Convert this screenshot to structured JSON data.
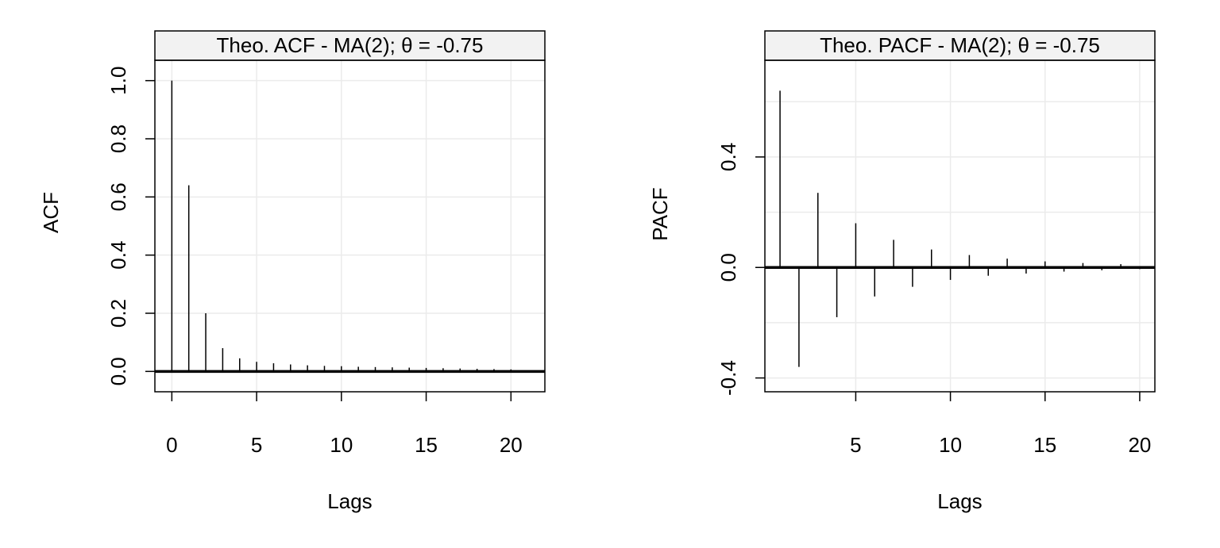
{
  "chart_data": [
    {
      "type": "bar",
      "title": "Theo. ACF - MA(2); θ = -0.75",
      "xlabel": "Lags",
      "ylabel": "ACF",
      "xlim": [
        -1,
        22
      ],
      "ylim": [
        -0.07,
        1.07
      ],
      "xticks": [
        0,
        5,
        10,
        15,
        20
      ],
      "xtick_labels": [
        "0",
        "5",
        "10",
        "15",
        "20"
      ],
      "yticks": [
        0.0,
        0.2,
        0.4,
        0.6,
        0.8,
        1.0
      ],
      "ytick_labels": [
        "0.0",
        "0.2",
        "0.4",
        "0.6",
        "0.8",
        "1.0"
      ],
      "grid": true,
      "x": [
        0,
        1,
        2,
        3,
        4,
        5,
        6,
        7,
        8,
        9,
        10,
        11,
        12,
        13,
        14,
        15,
        16,
        17,
        18,
        19,
        20
      ],
      "values": [
        1.0,
        0.64,
        0.2,
        0.08,
        0.045,
        0.033,
        0.028,
        0.024,
        0.021,
        0.019,
        0.018,
        0.016,
        0.015,
        0.014,
        0.013,
        0.012,
        0.011,
        0.01,
        0.009,
        0.008,
        0.007
      ]
    },
    {
      "type": "bar",
      "title": "Theo. PACF - MA(2); θ = -0.75",
      "xlabel": "Lags",
      "ylabel": "PACF",
      "xlim": [
        0.2,
        20.8
      ],
      "ylim": [
        -0.45,
        0.75
      ],
      "xticks": [
        5,
        10,
        15,
        20
      ],
      "xtick_labels": [
        "5",
        "10",
        "15",
        "20"
      ],
      "yticks": [
        -0.4,
        0.0,
        0.4
      ],
      "ytick_labels": [
        "-0.4",
        "0.0",
        "0.4"
      ],
      "grid_y": [
        -0.4,
        -0.2,
        0.0,
        0.2,
        0.4,
        0.6
      ],
      "grid": true,
      "x": [
        1,
        2,
        3,
        4,
        5,
        6,
        7,
        8,
        9,
        10,
        11,
        12,
        13,
        14,
        15,
        16,
        17,
        18,
        19,
        20
      ],
      "values": [
        0.64,
        -0.36,
        0.27,
        -0.18,
        0.16,
        -0.105,
        0.1,
        -0.07,
        0.065,
        -0.045,
        0.045,
        -0.03,
        0.032,
        -0.022,
        0.022,
        -0.015,
        0.016,
        -0.01,
        0.012,
        -0.006
      ]
    }
  ]
}
